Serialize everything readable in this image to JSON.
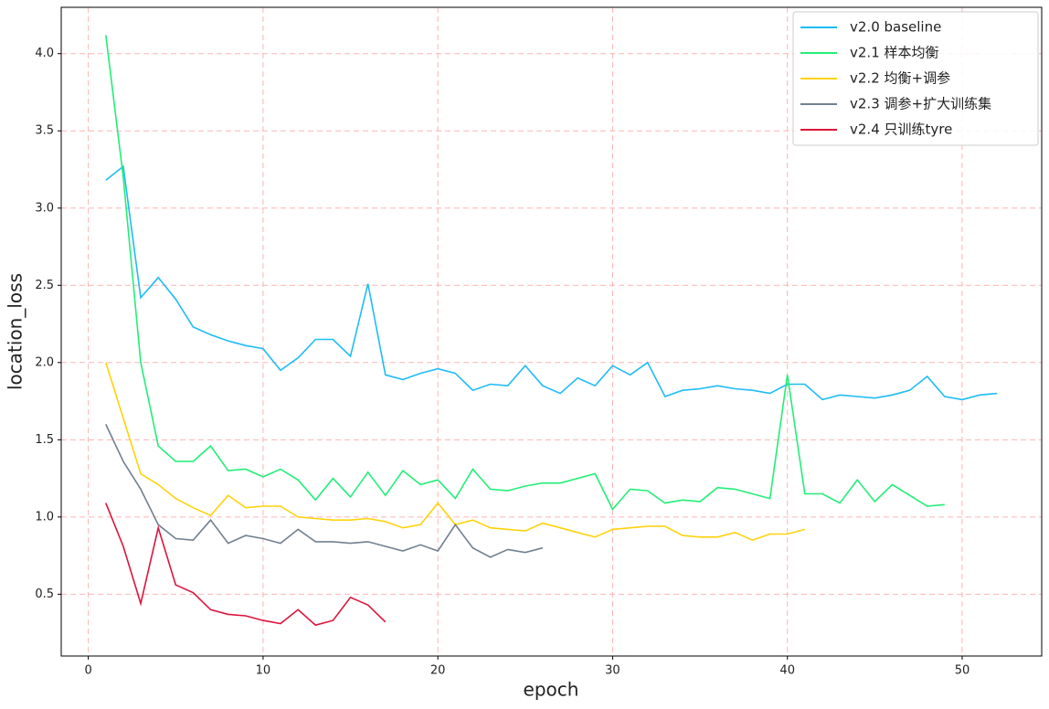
{
  "chart_data": {
    "type": "line",
    "xlabel": "epoch",
    "ylabel": "location_loss",
    "x": [
      1,
      2,
      3,
      4,
      5,
      6,
      7,
      8,
      9,
      10,
      11,
      12,
      13,
      14,
      15,
      16,
      17,
      18,
      19,
      20,
      21,
      22,
      23,
      24,
      25,
      26,
      27,
      28,
      29,
      30,
      31,
      32,
      33,
      34,
      35,
      36,
      37,
      38,
      39,
      40,
      41,
      42,
      43,
      44,
      45,
      46,
      47,
      48,
      49,
      50,
      51,
      52
    ],
    "series": [
      {
        "name": "v2.0 baseline",
        "color": "#1ebcf5",
        "values": [
          3.18,
          3.27,
          2.42,
          2.55,
          2.41,
          2.23,
          2.18,
          2.14,
          2.11,
          2.09,
          1.95,
          2.03,
          2.15,
          2.15,
          2.04,
          2.51,
          1.92,
          1.89,
          1.93,
          1.96,
          1.93,
          1.82,
          1.86,
          1.85,
          1.98,
          1.85,
          1.8,
          1.9,
          1.85,
          1.98,
          1.92,
          2.0,
          1.78,
          1.82,
          1.83,
          1.85,
          1.83,
          1.82,
          1.8,
          1.86,
          1.86,
          1.76,
          1.79,
          1.78,
          1.77,
          1.79,
          1.82,
          1.91,
          1.78,
          1.76,
          1.79,
          1.8
        ]
      },
      {
        "name": "v2.1 样本均衡",
        "color": "#22ee77",
        "values": [
          4.12,
          3.2,
          2.0,
          1.46,
          1.36,
          1.36,
          1.46,
          1.3,
          1.31,
          1.26,
          1.31,
          1.24,
          1.11,
          1.25,
          1.13,
          1.29,
          1.14,
          1.3,
          1.21,
          1.24,
          1.12,
          1.31,
          1.18,
          1.17,
          1.2,
          1.22,
          1.22,
          1.25,
          1.28,
          1.05,
          1.18,
          1.17,
          1.09,
          1.11,
          1.1,
          1.19,
          1.18,
          1.15,
          1.12,
          1.92,
          1.15,
          1.15,
          1.09,
          1.24,
          1.1,
          1.21,
          1.14,
          1.07,
          1.08,
          null,
          null,
          null
        ]
      },
      {
        "name": "v2.2 均衡+调参",
        "color": "#ffd20a",
        "values": [
          2.0,
          1.64,
          1.28,
          1.21,
          1.12,
          1.06,
          1.01,
          1.14,
          1.06,
          1.07,
          1.07,
          1.0,
          0.99,
          0.98,
          0.98,
          0.99,
          0.97,
          0.93,
          0.95,
          1.09,
          0.95,
          0.98,
          0.93,
          0.92,
          0.91,
          0.96,
          0.93,
          0.9,
          0.87,
          0.92,
          0.93,
          0.94,
          0.94,
          0.88,
          0.87,
          0.87,
          0.9,
          0.85,
          0.89,
          0.89,
          0.92,
          null,
          null,
          null,
          null,
          null,
          null,
          null,
          null,
          null,
          null,
          null
        ]
      },
      {
        "name": "v2.3 调参+扩大训练集",
        "color": "#708090",
        "values": [
          1.6,
          1.36,
          1.18,
          0.95,
          0.86,
          0.85,
          0.98,
          0.83,
          0.88,
          0.86,
          0.83,
          0.92,
          0.84,
          0.84,
          0.83,
          0.84,
          0.81,
          0.78,
          0.82,
          0.78,
          0.95,
          0.8,
          0.74,
          0.79,
          0.77,
          0.8,
          null,
          null,
          null,
          null,
          null,
          null,
          null,
          null,
          null,
          null,
          null,
          null,
          null,
          null,
          null,
          null,
          null,
          null,
          null,
          null,
          null,
          null,
          null,
          null,
          null,
          null
        ]
      },
      {
        "name": "v2.4 只训练tyre",
        "color": "#dc143c",
        "values": [
          1.09,
          0.81,
          0.44,
          0.93,
          0.56,
          0.51,
          0.4,
          0.37,
          0.36,
          0.33,
          0.31,
          0.4,
          0.3,
          0.33,
          0.48,
          0.43,
          0.32,
          null,
          null,
          null,
          null,
          null,
          null,
          null,
          null,
          null,
          null,
          null,
          null,
          null,
          null,
          null,
          null,
          null,
          null,
          null,
          null,
          null,
          null,
          null,
          null,
          null,
          null,
          null,
          null,
          null,
          null,
          null,
          null,
          null,
          null,
          null
        ]
      }
    ],
    "xlim": [
      -1.55,
      54.55
    ],
    "ylim": [
      0.1,
      4.3
    ],
    "xticks": [
      0,
      10,
      20,
      30,
      40,
      50
    ],
    "yticks": [
      0.5,
      {
        "value": 1,
        "label": "1.0"
      },
      1.5,
      {
        "value": 2,
        "label": "2.0"
      },
      2.5,
      {
        "value": 3,
        "label": "3.0"
      },
      3.5,
      {
        "value": 4,
        "label": "4.0"
      }
    ],
    "grid": true,
    "legend": "upper right"
  }
}
